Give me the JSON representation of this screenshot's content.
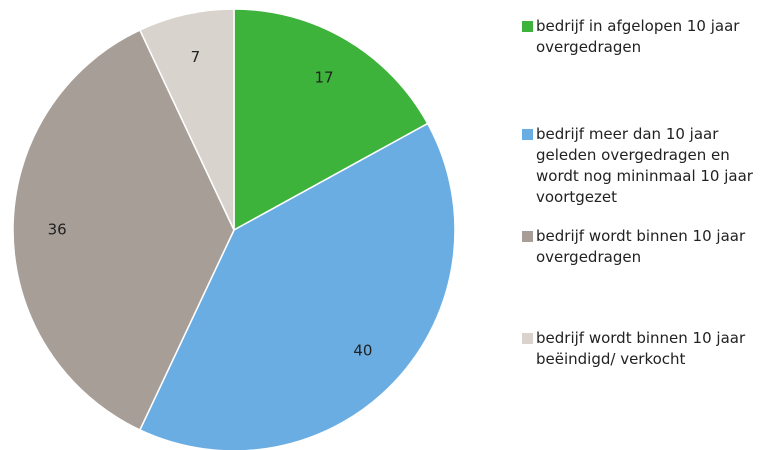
{
  "chart_data": {
    "type": "pie",
    "categories": [
      "bedrijf in afgelopen 10 jaar overgedragen",
      "bedrijf meer dan 10 jaar geleden overgedragen en wordt nog mininmaal 10 jaar voortgezet",
      "bedrijf wordt binnen 10 jaar overgedragen",
      "bedrijf wordt binnen 10 jaar beëindigd/ verkocht"
    ],
    "values": [
      17,
      40,
      36,
      7
    ],
    "colors": [
      "#3db33b",
      "#6aade3",
      "#a89e98",
      "#d8d4cd"
    ],
    "legend": "right"
  }
}
